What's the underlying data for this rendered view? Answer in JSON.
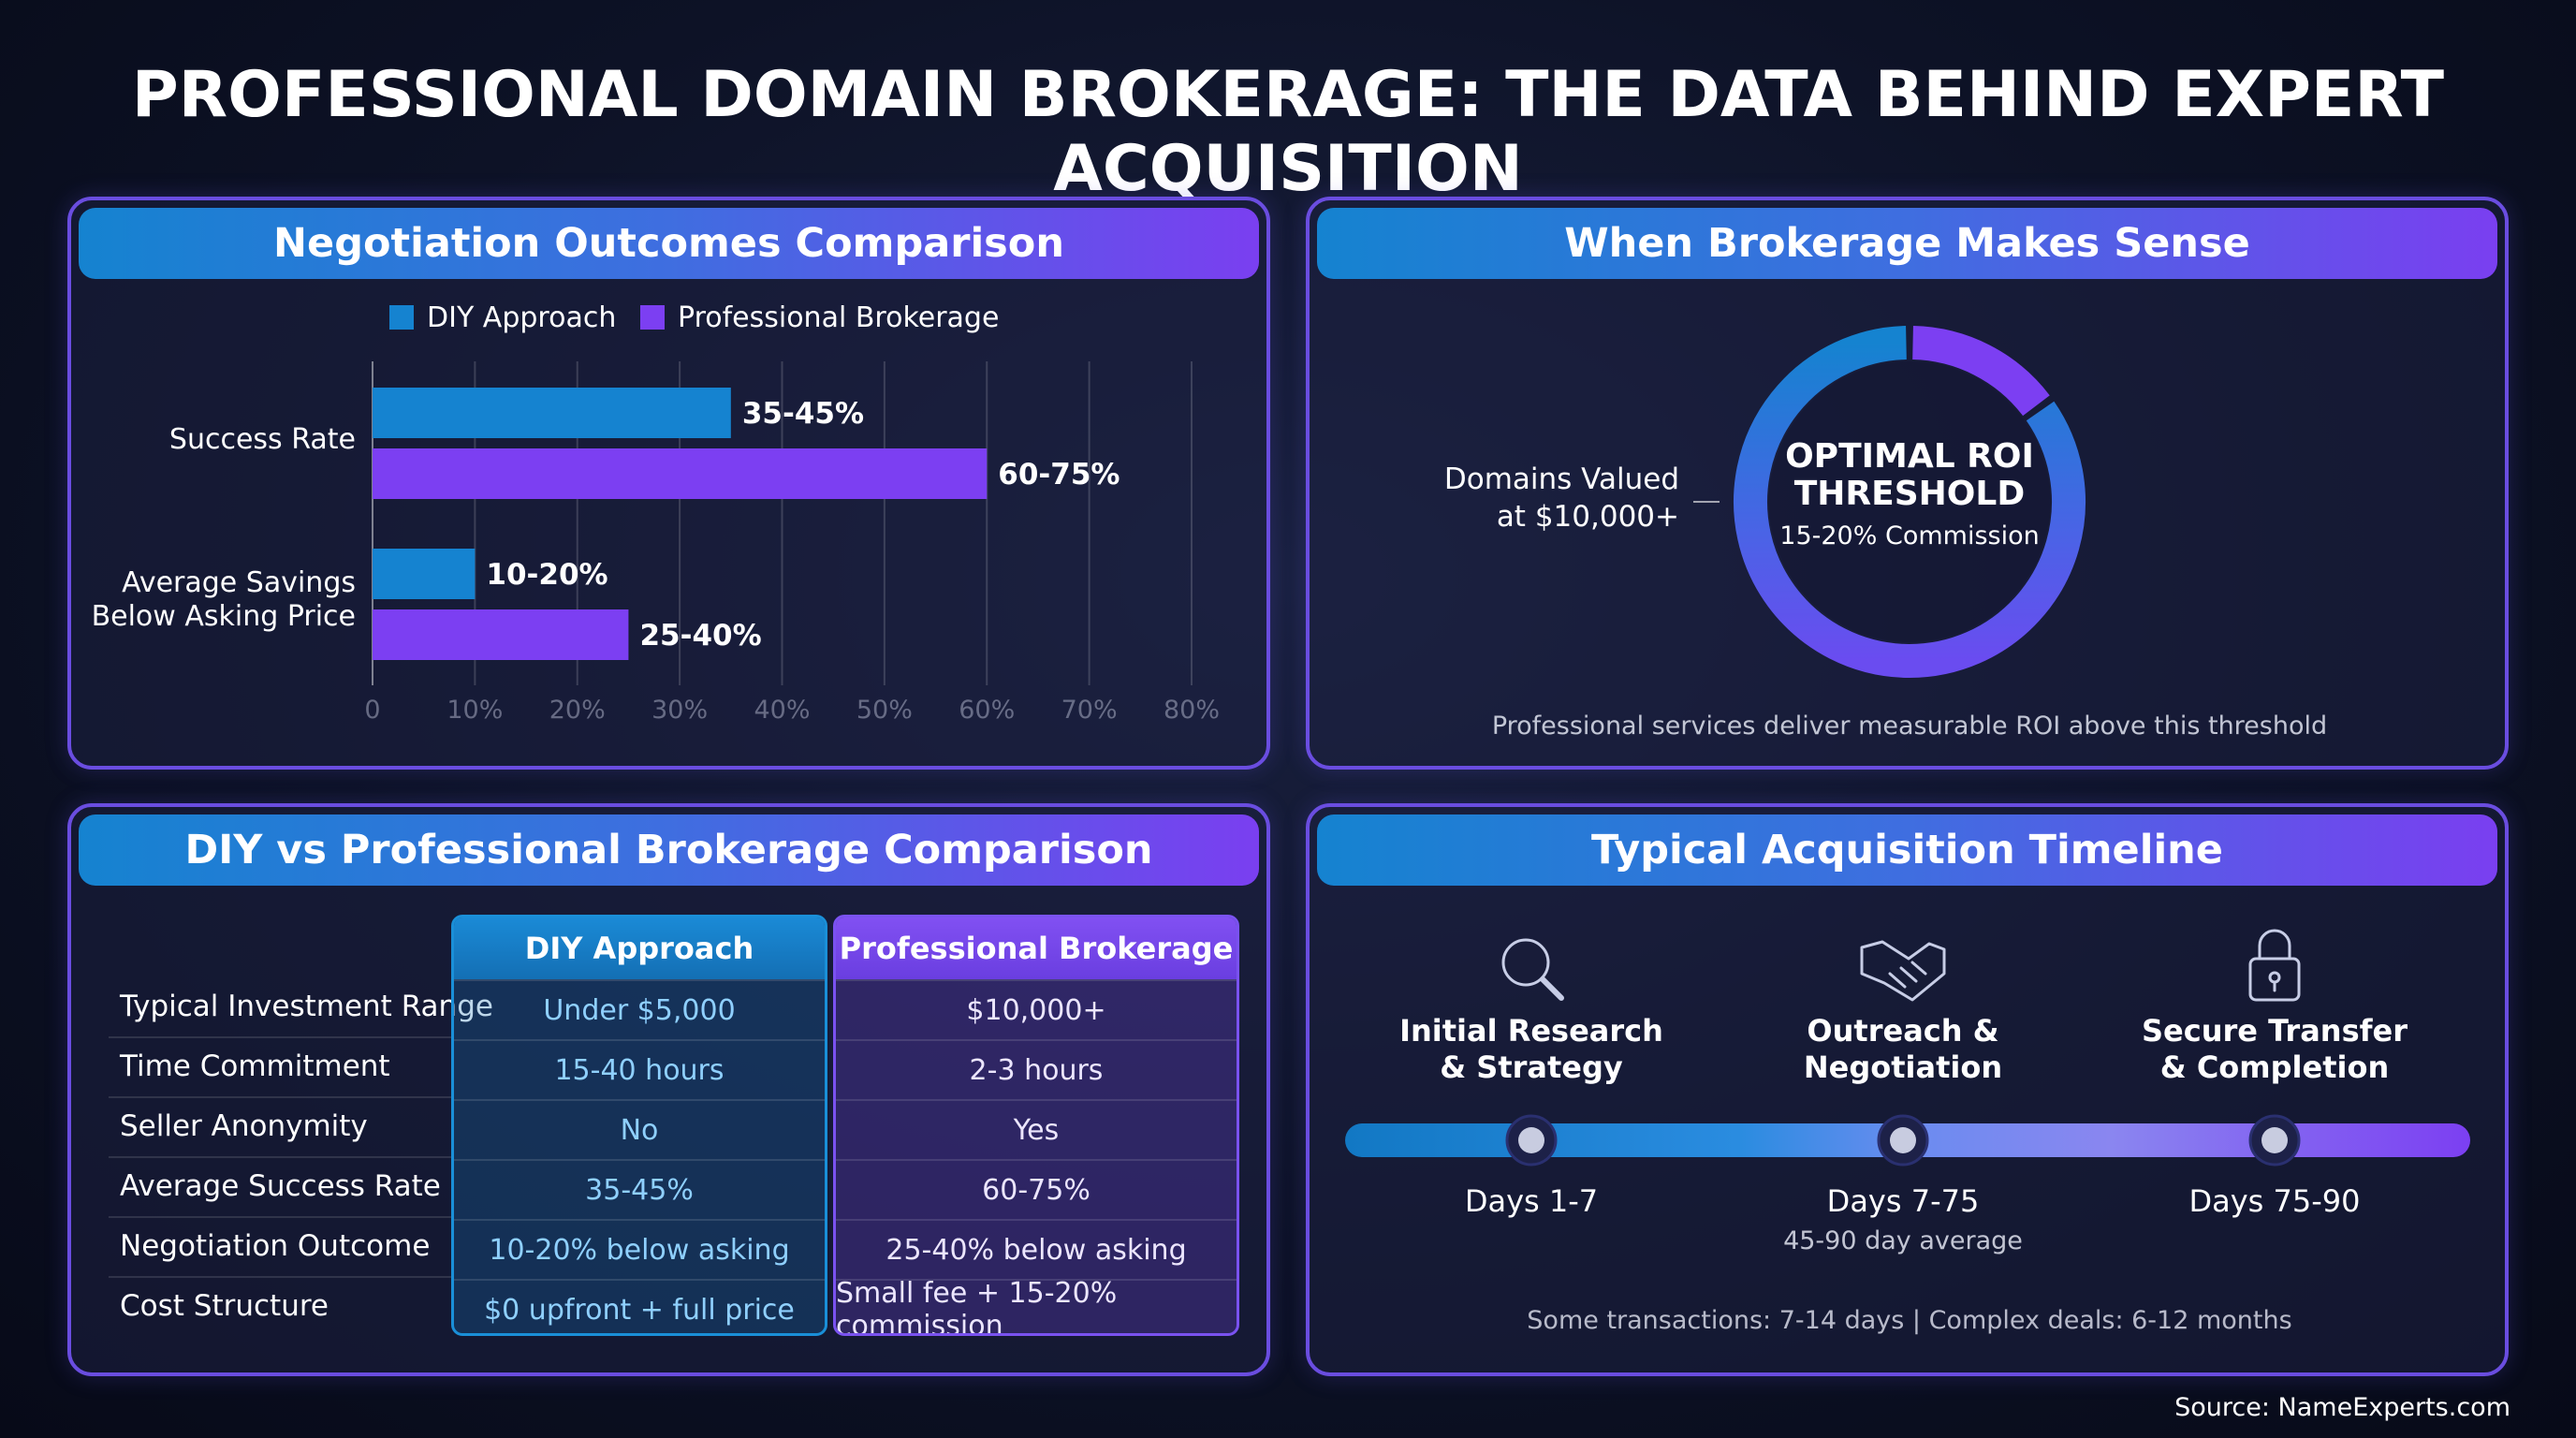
{
  "title": "PROFESSIONAL DOMAIN BROKERAGE: THE DATA BEHIND EXPERT ACQUISITION",
  "source": "Source: NameExperts.com",
  "colors": {
    "diy": "#1583d0",
    "professional": "#7c3ff2"
  },
  "negotiation": {
    "header": "Negotiation Outcomes Comparison"
  },
  "chart_data": [
    {
      "type": "bar",
      "orientation": "horizontal",
      "title": "Negotiation Outcomes Comparison",
      "categories": [
        "Success Rate",
        "Average Savings Below Asking Price"
      ],
      "series": [
        {
          "name": "DIY Approach",
          "values": [
            35,
            10
          ],
          "labels": [
            "35-45%",
            "10-20%"
          ]
        },
        {
          "name": "Professional Brokerage",
          "values": [
            60,
            25
          ],
          "labels": [
            "60-75%",
            "25-40%"
          ]
        }
      ],
      "xticks": [
        "0",
        "10%",
        "20%",
        "30%",
        "40%",
        "50%",
        "60%",
        "70%",
        "80%"
      ],
      "xlim": [
        0,
        80
      ],
      "grid": true,
      "legend": "top"
    },
    {
      "type": "pie",
      "title": "When Brokerage Makes Sense",
      "donut": true,
      "slices": [
        {
          "value": 15,
          "color": "#7c3ff2"
        },
        {
          "value": 85,
          "color": "gradient"
        }
      ],
      "center_title": [
        "OPTIMAL ROI",
        "THRESHOLD"
      ],
      "center_sub": "15-20% Commission",
      "callout": [
        "Domains Valued",
        "at $10,000+"
      ],
      "footnote": "Professional services deliver measurable ROI above this threshold"
    }
  ],
  "roi": {
    "header": "When Brokerage Makes Sense"
  },
  "comparison": {
    "header": "DIY vs Professional Brokerage Comparison",
    "col_diy": "DIY Approach",
    "col_pro": "Professional Brokerage",
    "rows": [
      {
        "label": "Typical Investment Range",
        "diy": "Under $5,000",
        "pro": "$10,000+"
      },
      {
        "label": "Time Commitment",
        "diy": "15-40 hours",
        "pro": "2-3 hours"
      },
      {
        "label": "Seller Anonymity",
        "diy": "No",
        "pro": "Yes"
      },
      {
        "label": "Average Success Rate",
        "diy": "35-45%",
        "pro": "60-75%"
      },
      {
        "label": "Negotiation Outcome",
        "diy": "10-20% below asking",
        "pro": "25-40% below asking"
      },
      {
        "label": "Cost Structure",
        "diy": "$0 upfront + full price",
        "pro": "Small fee + 15-20% commission"
      }
    ]
  },
  "timeline": {
    "header": "Typical Acquisition Timeline",
    "steps": [
      {
        "icon": "magnifier-icon",
        "title": [
          "Initial Research",
          "& Strategy"
        ],
        "days": "Days 1-7",
        "note": ""
      },
      {
        "icon": "handshake-icon",
        "title": [
          "Outreach &",
          "Negotiation"
        ],
        "days": "Days 7-75",
        "note": "45-90 day average"
      },
      {
        "icon": "lock-icon",
        "title": [
          "Secure Transfer",
          "& Completion"
        ],
        "days": "Days 75-90",
        "note": ""
      }
    ],
    "footnote": "Some transactions: 7-14 days | Complex deals: 6-12 months"
  }
}
